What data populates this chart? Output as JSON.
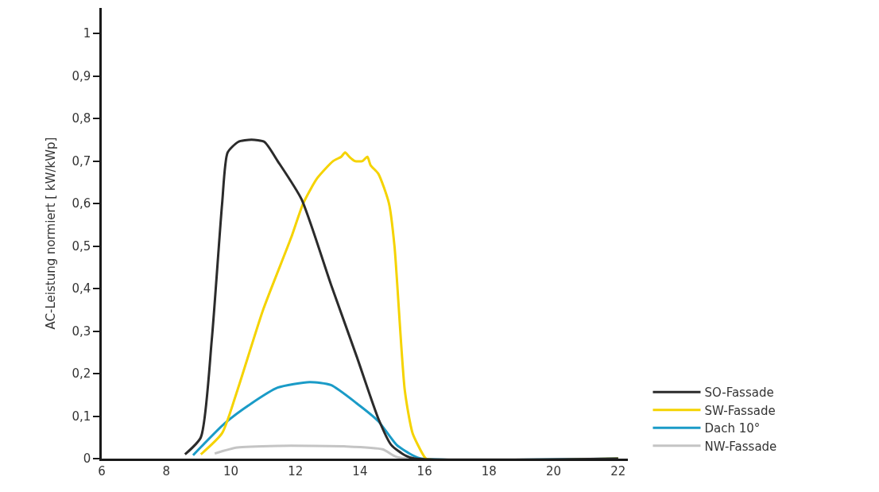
{
  "chart_data": {
    "type": "line",
    "ylabel": "AC-Leistung normiert [ kW/kWp]",
    "xlim": [
      6,
      22.3
    ],
    "ylim": [
      0,
      1.06
    ],
    "xticks": [
      6,
      8,
      10,
      12,
      14,
      16,
      18,
      20,
      22
    ],
    "yticks": [
      0,
      {
        "value": 0.1,
        "label": "0,1"
      },
      {
        "value": 0.2,
        "label": "0,2"
      },
      {
        "value": 0.3,
        "label": "0,3"
      },
      {
        "value": 0.4,
        "label": "0,4"
      },
      {
        "value": 0.5,
        "label": "0,5"
      },
      {
        "value": 0.6,
        "label": "0,6"
      },
      {
        "value": 0.7,
        "label": "0,7"
      },
      {
        "value": 0.8,
        "label": "0,8"
      },
      {
        "value": 0.9,
        "label": "0,9"
      },
      1
    ],
    "legend": "bottom right",
    "marker": "none",
    "line_style": "solid",
    "series": [
      {
        "name": "NW-Fassade",
        "color": "#c4c4c4",
        "x": [
          9.5,
          10.2,
          11.5,
          12.5,
          13.5,
          14.7,
          15.1,
          15.5,
          22
        ],
        "values": [
          0.012,
          0.026,
          0.03,
          0.03,
          0.029,
          0.022,
          0.005,
          0,
          0
        ]
      },
      {
        "name": "Dach 10°",
        "color": "#1a9bc7",
        "x": [
          8.83,
          9.81,
          10.64,
          11.45,
          12.44,
          13.1,
          13.9,
          14.57,
          15.14,
          15.63,
          15.9,
          22
        ],
        "values": [
          0.008,
          0.083,
          0.13,
          0.167,
          0.18,
          0.173,
          0.13,
          0.088,
          0.032,
          0.008,
          0,
          0
        ]
      },
      {
        "name": "SW-Fassade",
        "color": "#f5d300",
        "x": [
          9.07,
          9.73,
          10.2,
          11.0,
          11.87,
          12.24,
          12.68,
          13.17,
          13.42,
          13.54,
          13.67,
          13.84,
          14.08,
          14.23,
          14.33,
          14.57,
          14.9,
          15.07,
          15.39,
          15.63,
          15.95,
          16.05,
          22
        ],
        "values": [
          0.01,
          0.06,
          0.16,
          0.35,
          0.52,
          0.6,
          0.66,
          0.7,
          0.71,
          0.72,
          0.71,
          0.7,
          0.7,
          0.71,
          0.69,
          0.67,
          0.6,
          0.5,
          0.16,
          0.06,
          0.01,
          0,
          0
        ]
      },
      {
        "name": "SO-Fassade",
        "color": "#2b2b2b",
        "x": [
          8.58,
          9.07,
          9.41,
          9.73,
          9.9,
          10.23,
          10.64,
          11.04,
          11.45,
          12.19,
          13.1,
          13.9,
          14.57,
          14.97,
          15.39,
          15.7,
          22
        ],
        "values": [
          0.01,
          0.05,
          0.28,
          0.6,
          0.72,
          0.745,
          0.75,
          0.745,
          0.7,
          0.61,
          0.41,
          0.24,
          0.094,
          0.032,
          0.008,
          0,
          0
        ]
      }
    ]
  }
}
